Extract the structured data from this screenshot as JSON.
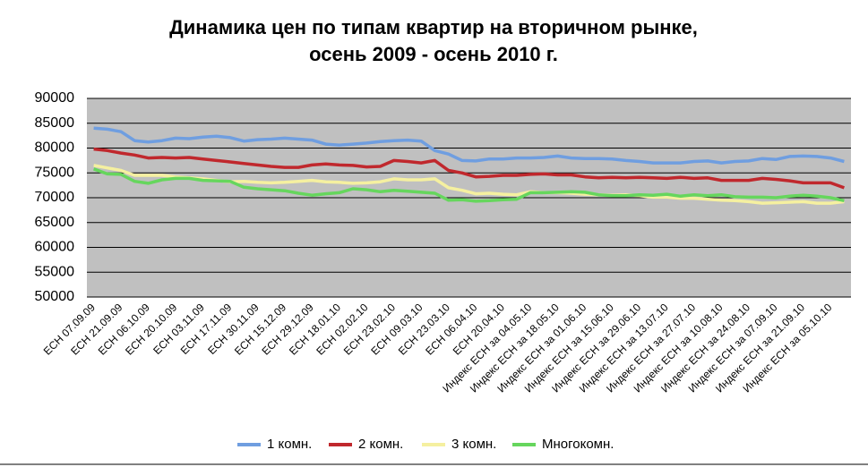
{
  "chart_data": {
    "type": "line",
    "title": "Динамика цен по типам квартир на вторичном рынке,",
    "subtitle": "осень 2009 - осень 2010 г.",
    "categories": [
      "ЕСН 07.09.09",
      null,
      "ЕСН 21.09.09",
      null,
      "ЕСН 06.10.09",
      null,
      "ЕСН 20.10.09",
      null,
      "ЕСН 03.11.09",
      null,
      "ЕСН 17.11.09",
      null,
      "ЕСН 30.11.09",
      null,
      "ЕСН 15.12.09",
      null,
      "ЕСН 29.12.09",
      null,
      "ЕСН 18.01.10",
      null,
      "ЕСН 02.02.10",
      null,
      "ЕСН 23.02.10",
      null,
      "ЕСН 09.03.10",
      null,
      "ЕСН 23.03.10",
      null,
      "ЕСН 06.04.10",
      null,
      "ЕСН 20.04.10",
      null,
      "Индекс ЕСН за 04.05.10",
      null,
      "Индекс ЕСН за 18.05.10",
      null,
      "Индекс ЕСН за 01.06.10",
      null,
      "Индекс ЕСН за 15.06.10",
      null,
      "Индекс ЕСН за 29.06.10",
      null,
      "Индекс ЕСН за 13.07.10",
      null,
      "Индекс ЕСН за 27.07.10",
      null,
      "Индекс ЕСН за 10.08.10",
      null,
      "Индекс ЕСН за 24.08.10",
      null,
      "Индекс ЕСН за 07.09.10",
      null,
      "Индекс ЕСН за 21.09.10",
      null,
      "Индекс ЕСН за 05.10.10",
      null
    ],
    "series": [
      {
        "name": "1 комн.",
        "color": "#6f9ee0",
        "values": [
          84000,
          83800,
          83300,
          81500,
          81200,
          81500,
          82000,
          81900,
          82200,
          82400,
          82100,
          81400,
          81700,
          81800,
          82000,
          81800,
          81600,
          80800,
          80600,
          80800,
          81000,
          81300,
          81500,
          81600,
          81400,
          79500,
          78800,
          77500,
          77400,
          77800,
          77800,
          78000,
          78000,
          78100,
          78400,
          78000,
          77900,
          77900,
          77800,
          77500,
          77300,
          77000,
          77000,
          77000,
          77300,
          77400,
          77000,
          77300,
          77400,
          77900,
          77700,
          78300,
          78400,
          78300,
          78000,
          77300
        ]
      },
      {
        "name": "2 комн.",
        "color": "#c0282d",
        "values": [
          79800,
          79500,
          79000,
          78600,
          78000,
          78100,
          78000,
          78100,
          77800,
          77500,
          77200,
          76900,
          76600,
          76300,
          76100,
          76100,
          76600,
          76800,
          76600,
          76500,
          76200,
          76300,
          77500,
          77300,
          77000,
          77500,
          75500,
          75000,
          74200,
          74300,
          74500,
          74500,
          74700,
          74800,
          74600,
          74600,
          74200,
          74000,
          74100,
          74000,
          74100,
          74000,
          73900,
          74100,
          73900,
          74000,
          73500,
          73500,
          73500,
          73900,
          73700,
          73400,
          73000,
          73000,
          73000,
          72000
        ]
      },
      {
        "name": "3 комн.",
        "color": "#f5f0a0",
        "values": [
          76500,
          76000,
          75500,
          74500,
          74500,
          74500,
          74200,
          74000,
          73800,
          73500,
          73200,
          73300,
          73100,
          73000,
          73100,
          73300,
          73500,
          73200,
          73100,
          72900,
          73000,
          73200,
          73800,
          73600,
          73600,
          73800,
          72000,
          71500,
          70800,
          70900,
          70700,
          70600,
          71200,
          71000,
          71000,
          70900,
          70700,
          70600,
          70500,
          70600,
          70400,
          70100,
          70100,
          69900,
          69900,
          69700,
          69500,
          69400,
          69200,
          68900,
          69000,
          69100,
          69200,
          68900,
          68900,
          69200
        ]
      },
      {
        "name": "Многокомн.",
        "color": "#66d65d",
        "values": [
          75800,
          74800,
          74700,
          73300,
          72900,
          73600,
          73900,
          73900,
          73500,
          73400,
          73300,
          72100,
          71800,
          71600,
          71400,
          70900,
          70500,
          70800,
          71000,
          71800,
          71600,
          71200,
          71500,
          71300,
          71100,
          70900,
          69500,
          69600,
          69300,
          69400,
          69600,
          69700,
          71000,
          71000,
          71100,
          71200,
          71100,
          70600,
          70400,
          70400,
          70600,
          70500,
          70700,
          70300,
          70600,
          70400,
          70600,
          70200,
          70100,
          70100,
          70000,
          70300,
          70500,
          70300,
          70000,
          69400
        ]
      }
    ],
    "ylim": [
      50000,
      90000
    ],
    "yticks": [
      50000,
      55000,
      60000,
      65000,
      70000,
      75000,
      80000,
      85000,
      90000
    ],
    "grid": true,
    "legend": "bottom"
  }
}
